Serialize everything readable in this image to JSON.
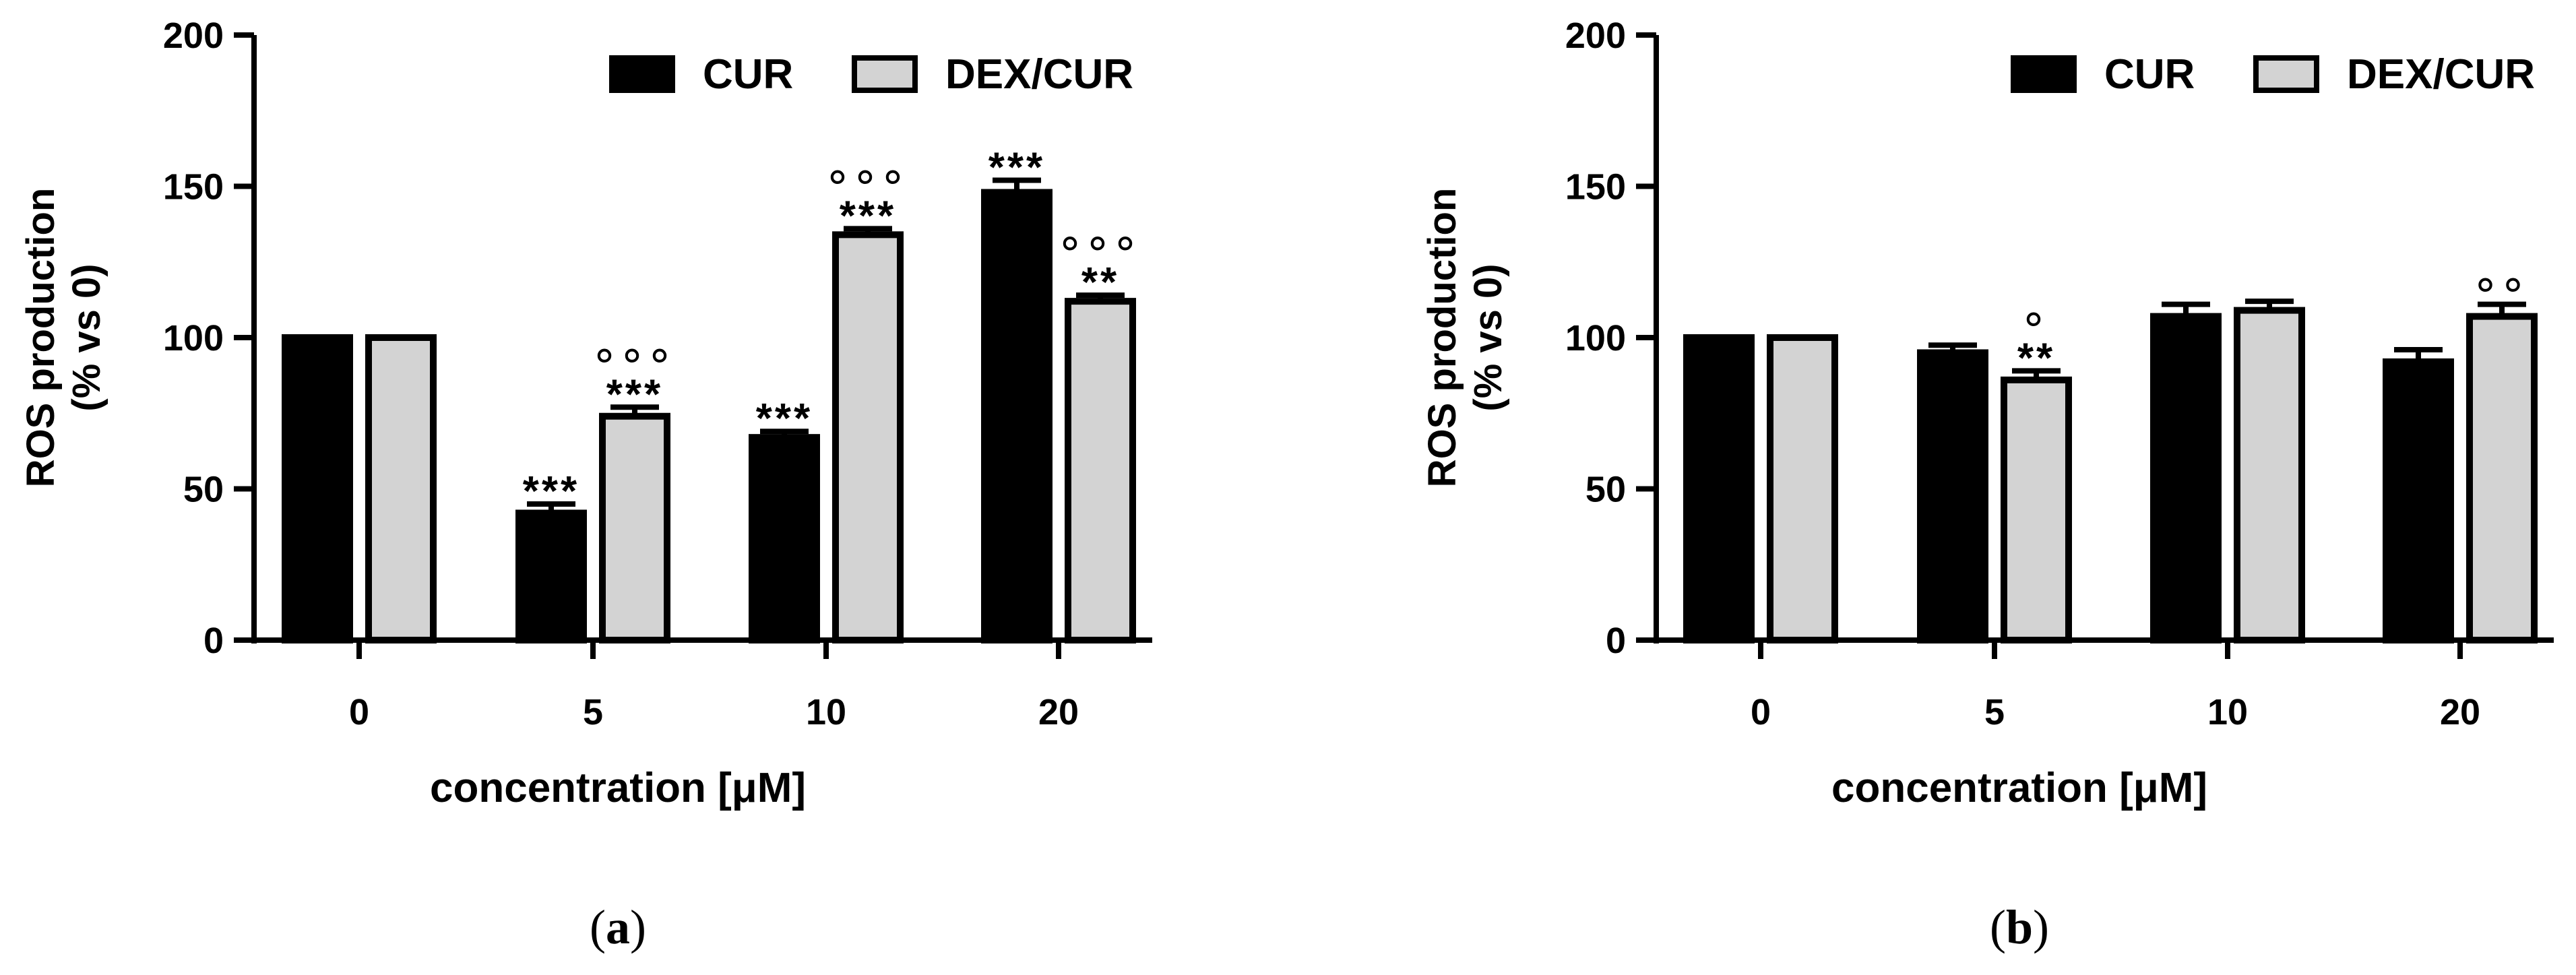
{
  "chart_data": [
    {
      "panel_label": "(a)",
      "panel_letter": "a",
      "type": "bar",
      "categories": [
        "0",
        "5",
        "10",
        "20"
      ],
      "xlabel": "concentration [μM]",
      "ylabel_line1": "ROS production",
      "ylabel_line2": "(% vs 0)",
      "ylim": [
        0,
        200
      ],
      "yticks": [
        "0",
        "50",
        "100",
        "150",
        "200"
      ],
      "legend_position": "top-right",
      "series": [
        {
          "name": "CUR",
          "color": "#000000",
          "values": [
            100,
            42,
            67,
            148
          ],
          "errors": [
            0,
            3,
            2,
            4
          ],
          "stars": [
            "",
            "***",
            "***",
            "***"
          ],
          "circles": [
            "",
            "",
            "",
            ""
          ]
        },
        {
          "name": "DEX/CUR",
          "color": "#d3d3d3",
          "values": [
            100,
            74,
            134,
            112
          ],
          "errors": [
            0,
            3,
            2,
            2
          ],
          "stars": [
            "",
            "***",
            "***",
            "**"
          ],
          "circles": [
            "",
            "°°°",
            "°°°",
            "°°°"
          ]
        }
      ]
    },
    {
      "panel_label": "(b)",
      "panel_letter": "b",
      "type": "bar",
      "categories": [
        "0",
        "5",
        "10",
        "20"
      ],
      "xlabel": "concentration [μM]",
      "ylabel_line1": "ROS production",
      "ylabel_line2": "(% vs 0)",
      "ylim": [
        0,
        200
      ],
      "yticks": [
        "0",
        "50",
        "100",
        "150",
        "200"
      ],
      "legend_position": "top-right",
      "series": [
        {
          "name": "CUR",
          "color": "#000000",
          "values": [
            100,
            95,
            107,
            92
          ],
          "errors": [
            0,
            2.5,
            4,
            4
          ],
          "stars": [
            "",
            "",
            "",
            ""
          ],
          "circles": [
            "",
            "",
            "",
            ""
          ]
        },
        {
          "name": "DEX/CUR",
          "color": "#d3d3d3",
          "values": [
            100,
            86,
            109,
            107
          ],
          "errors": [
            0,
            3,
            3,
            4
          ],
          "stars": [
            "",
            "**",
            "",
            ""
          ],
          "circles": [
            "",
            "°",
            "",
            "°°"
          ]
        }
      ]
    }
  ]
}
